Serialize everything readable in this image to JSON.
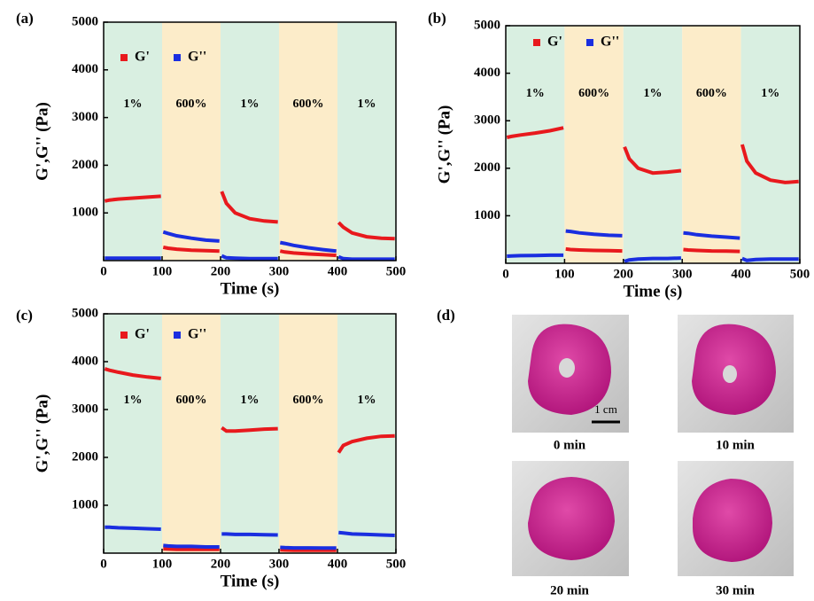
{
  "chart_data": [
    {
      "type": "line",
      "panel_label": "(a)",
      "x_label": "Time (s)",
      "y_label": "G',G'' (Pa)",
      "xlim": [
        0,
        500
      ],
      "xticks": [
        0,
        100,
        200,
        300,
        400,
        500
      ],
      "ylim": [
        0,
        5000
      ],
      "yticks": [
        1000,
        2000,
        3000,
        4000,
        5000
      ],
      "legend": "upper left",
      "regions": [
        {
          "x0": 0,
          "x1": 100,
          "label": "1%",
          "color": "#d9efe1"
        },
        {
          "x0": 100,
          "x1": 200,
          "label": "600%",
          "color": "#fcecc9"
        },
        {
          "x0": 200,
          "x1": 300,
          "label": "1%",
          "color": "#d9efe1"
        },
        {
          "x0": 300,
          "x1": 400,
          "label": "600%",
          "color": "#fcecc9"
        },
        {
          "x0": 400,
          "x1": 500,
          "label": "1%",
          "color": "#d9efe1"
        }
      ],
      "x": [
        2,
        10,
        25,
        50,
        75,
        98,
        100,
        102,
        110,
        125,
        150,
        175,
        198,
        200,
        202,
        210,
        225,
        250,
        275,
        298,
        300,
        302,
        310,
        325,
        350,
        375,
        398,
        400,
        402,
        410,
        425,
        450,
        475,
        498
      ],
      "series": [
        {
          "name": "G'",
          "color": "#e8191d",
          "values": [
            1250,
            1270,
            1290,
            1310,
            1330,
            1350,
            null,
            280,
            260,
            240,
            220,
            210,
            200,
            null,
            1450,
            1200,
            1000,
            880,
            830,
            810,
            null,
            200,
            180,
            160,
            140,
            125,
            110,
            null,
            800,
            700,
            580,
            500,
            470,
            460
          ]
        },
        {
          "name": "G''",
          "color": "#1a2ee0",
          "values": [
            50,
            50,
            50,
            50,
            50,
            50,
            null,
            600,
            570,
            520,
            470,
            430,
            410,
            null,
            100,
            60,
            50,
            40,
            40,
            40,
            null,
            380,
            360,
            320,
            270,
            230,
            200,
            null,
            80,
            40,
            30,
            30,
            30,
            30
          ]
        }
      ]
    },
    {
      "type": "line",
      "panel_label": "(b)",
      "x_label": "Time (s)",
      "y_label": "G',G'' (Pa)",
      "xlim": [
        0,
        500
      ],
      "xticks": [
        0,
        100,
        200,
        300,
        400,
        500
      ],
      "ylim": [
        0,
        5000
      ],
      "yticks": [
        1000,
        2000,
        3000,
        4000,
        5000
      ],
      "legend": "upper left",
      "regions": [
        {
          "x0": 0,
          "x1": 100,
          "label": "1%",
          "color": "#d9efe1"
        },
        {
          "x0": 100,
          "x1": 200,
          "label": "600%",
          "color": "#fcecc9"
        },
        {
          "x0": 200,
          "x1": 300,
          "label": "1%",
          "color": "#d9efe1"
        },
        {
          "x0": 300,
          "x1": 400,
          "label": "600%",
          "color": "#fcecc9"
        },
        {
          "x0": 400,
          "x1": 500,
          "label": "1%",
          "color": "#d9efe1"
        }
      ],
      "x": [
        2,
        10,
        25,
        50,
        75,
        98,
        100,
        102,
        110,
        125,
        150,
        175,
        198,
        200,
        202,
        210,
        225,
        250,
        275,
        298,
        300,
        302,
        310,
        325,
        350,
        375,
        398,
        400,
        402,
        410,
        425,
        450,
        475,
        498
      ],
      "series": [
        {
          "name": "G'",
          "color": "#e8191d",
          "values": [
            2650,
            2670,
            2700,
            2740,
            2790,
            2850,
            null,
            300,
            290,
            280,
            270,
            265,
            260,
            null,
            2450,
            2200,
            2000,
            1900,
            1920,
            1950,
            null,
            290,
            280,
            270,
            260,
            255,
            250,
            null,
            2500,
            2150,
            1900,
            1750,
            1700,
            1720
          ]
        },
        {
          "name": "G''",
          "color": "#1a2ee0",
          "values": [
            150,
            155,
            160,
            165,
            170,
            170,
            null,
            680,
            670,
            640,
            610,
            590,
            580,
            null,
            40,
            70,
            90,
            100,
            100,
            110,
            null,
            640,
            630,
            600,
            570,
            550,
            530,
            null,
            100,
            60,
            80,
            90,
            90,
            90
          ]
        }
      ]
    },
    {
      "type": "line",
      "panel_label": "(c)",
      "x_label": "Time (s)",
      "y_label": "G',G'' (Pa)",
      "xlim": [
        0,
        500
      ],
      "xticks": [
        0,
        100,
        200,
        300,
        400,
        500
      ],
      "ylim": [
        0,
        5000
      ],
      "yticks": [
        1000,
        2000,
        3000,
        4000,
        5000
      ],
      "legend": "upper left",
      "regions": [
        {
          "x0": 0,
          "x1": 100,
          "label": "1%",
          "color": "#d9efe1"
        },
        {
          "x0": 100,
          "x1": 200,
          "label": "600%",
          "color": "#fcecc9"
        },
        {
          "x0": 200,
          "x1": 300,
          "label": "1%",
          "color": "#d9efe1"
        },
        {
          "x0": 300,
          "x1": 400,
          "label": "600%",
          "color": "#fcecc9"
        },
        {
          "x0": 400,
          "x1": 500,
          "label": "1%",
          "color": "#d9efe1"
        }
      ],
      "x": [
        2,
        10,
        25,
        50,
        75,
        98,
        100,
        102,
        110,
        125,
        150,
        175,
        198,
        200,
        202,
        210,
        225,
        250,
        275,
        298,
        300,
        302,
        310,
        325,
        350,
        375,
        398,
        400,
        402,
        410,
        425,
        450,
        475,
        498
      ],
      "series": [
        {
          "name": "G'",
          "color": "#e8191d",
          "values": [
            3850,
            3820,
            3780,
            3720,
            3680,
            3650,
            null,
            90,
            85,
            80,
            80,
            80,
            80,
            null,
            2620,
            2550,
            2550,
            2570,
            2590,
            2600,
            null,
            70,
            65,
            60,
            60,
            60,
            60,
            null,
            2100,
            2250,
            2330,
            2400,
            2440,
            2450
          ]
        },
        {
          "name": "G''",
          "color": "#1a2ee0",
          "values": [
            540,
            540,
            530,
            520,
            510,
            500,
            null,
            160,
            150,
            140,
            140,
            130,
            130,
            null,
            400,
            400,
            390,
            390,
            385,
            380,
            null,
            120,
            115,
            110,
            110,
            105,
            105,
            null,
            430,
            420,
            400,
            390,
            380,
            370
          ]
        }
      ]
    }
  ],
  "figure_d": {
    "panel_label": "(d)",
    "scale_bar": "1 cm",
    "captions": [
      "0 min",
      "10 min",
      "20 min",
      "30 min"
    ]
  }
}
